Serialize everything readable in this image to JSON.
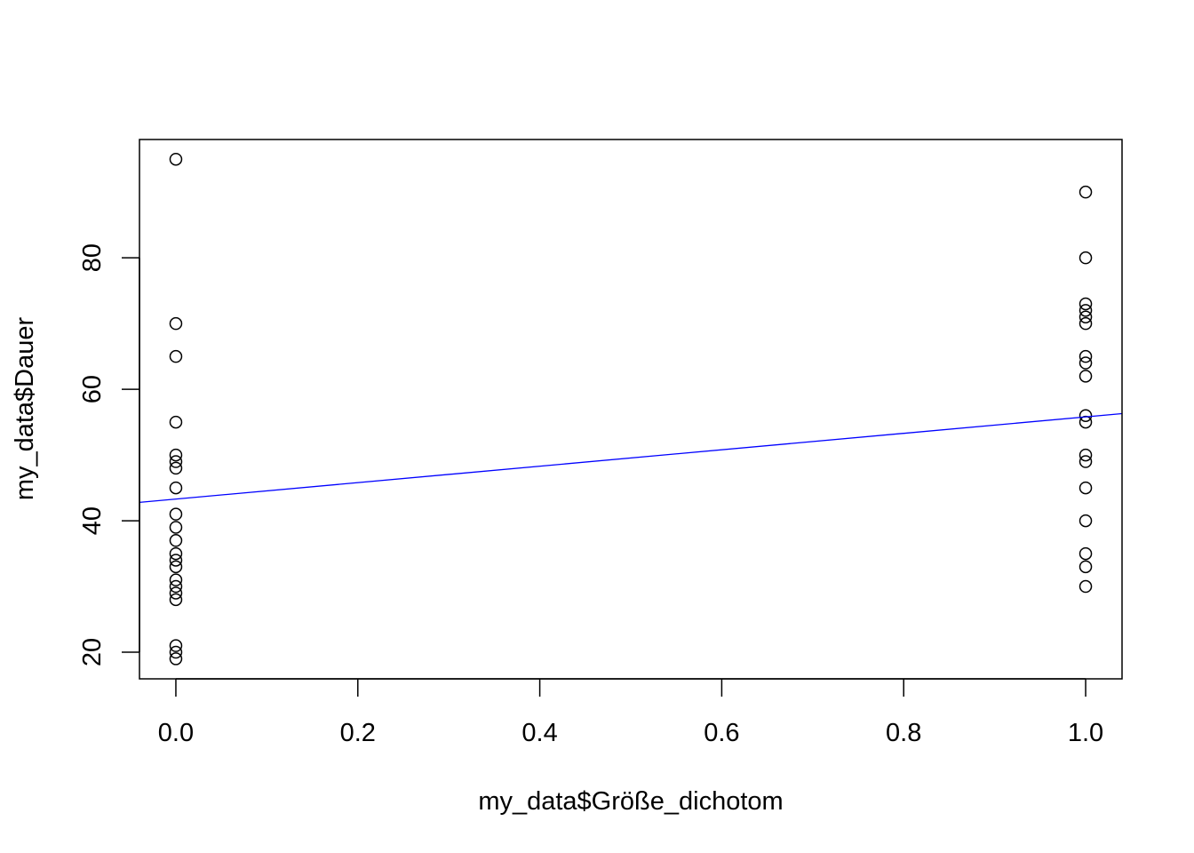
{
  "chart_data": {
    "type": "scatter",
    "title": "",
    "xlabel": "my_data$Größe_dichotom",
    "ylabel": "my_data$Dauer",
    "xlim": [
      -0.04,
      1.04
    ],
    "ylim": [
      15.95,
      98.0
    ],
    "xticks": [
      "0.0",
      "0.2",
      "0.4",
      "0.6",
      "0.8",
      "1.0"
    ],
    "yticks": [
      "20",
      "40",
      "60",
      "80"
    ],
    "grid": false,
    "points": [
      {
        "x": 0,
        "y": [
          95,
          70,
          65,
          55,
          50,
          49,
          48,
          45,
          41,
          39,
          37,
          35,
          34,
          33,
          31,
          30,
          29,
          28,
          21,
          20,
          19
        ]
      },
      {
        "x": 1,
        "y": [
          90,
          80,
          73,
          72,
          71,
          70,
          65,
          64,
          62,
          56,
          55,
          50,
          49,
          45,
          40,
          35,
          33,
          30
        ]
      }
    ],
    "regression_line": {
      "intercept": 43.3,
      "slope": 12.5,
      "color": "#0000ff"
    },
    "point_color": "#000000"
  }
}
